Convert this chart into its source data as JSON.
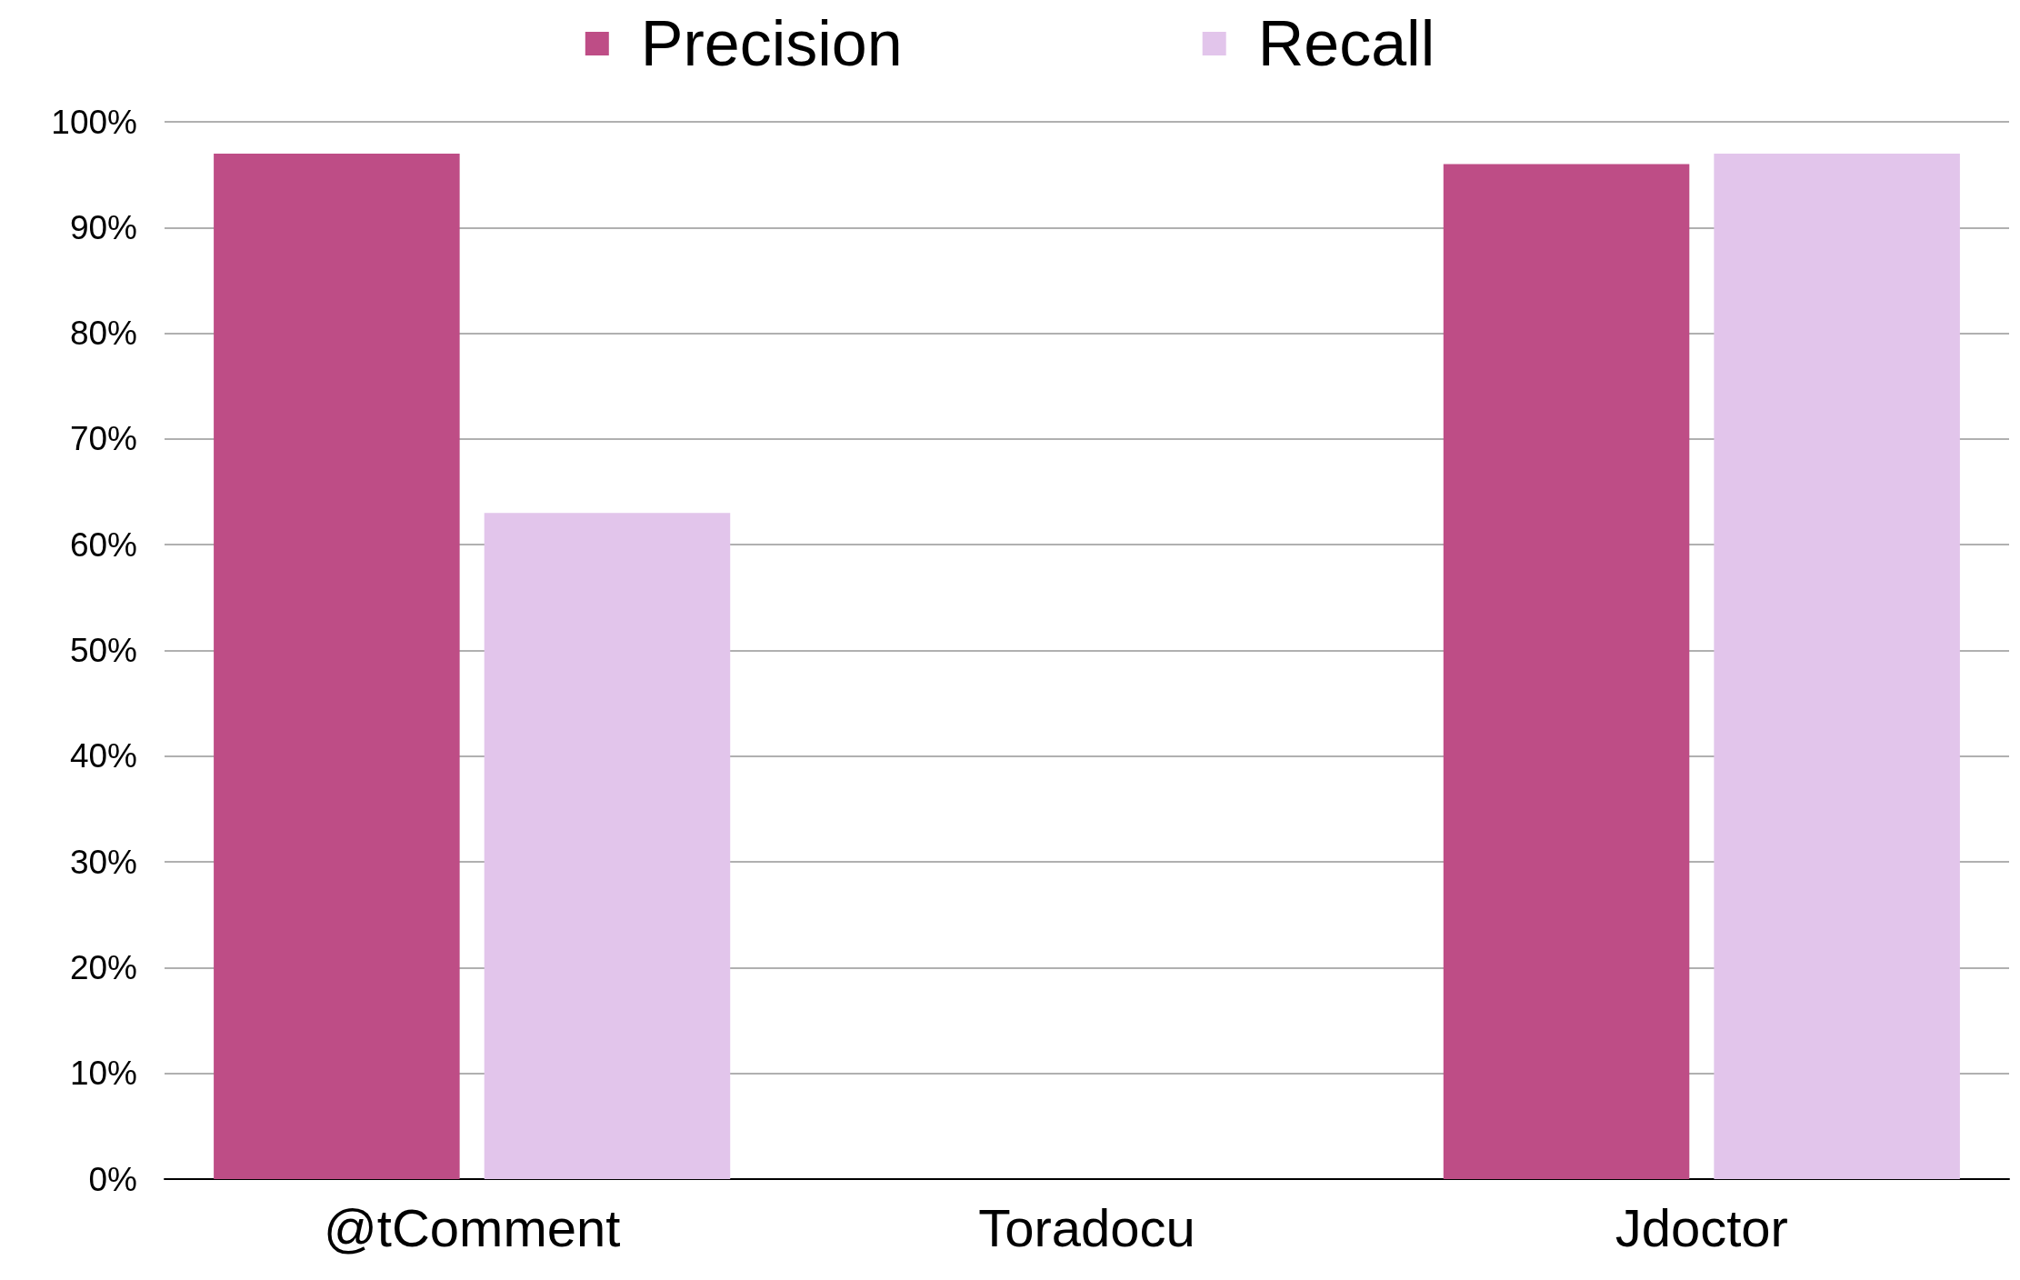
{
  "chart_data": {
    "type": "bar",
    "categories": [
      "@tComment",
      "Toradocu",
      "Jdoctor"
    ],
    "series": [
      {
        "name": "Precision",
        "color": "#be4d86",
        "values": [
          97,
          null,
          96
        ]
      },
      {
        "name": "Recall",
        "color": "#e2c5eb",
        "values": [
          63,
          null,
          97
        ]
      }
    ],
    "ylim": [
      0,
      100
    ],
    "yticks": [
      {
        "value": 0,
        "label": "0%"
      },
      {
        "value": 10,
        "label": "10%"
      },
      {
        "value": 20,
        "label": "20%"
      },
      {
        "value": 30,
        "label": "30%"
      },
      {
        "value": 40,
        "label": "40%"
      },
      {
        "value": 50,
        "label": "50%"
      },
      {
        "value": 60,
        "label": "60%"
      },
      {
        "value": 70,
        "label": "70%"
      },
      {
        "value": 80,
        "label": "80%"
      },
      {
        "value": 90,
        "label": "90%"
      },
      {
        "value": 100,
        "label": "100%"
      }
    ],
    "grid": "y",
    "legend": "top"
  }
}
